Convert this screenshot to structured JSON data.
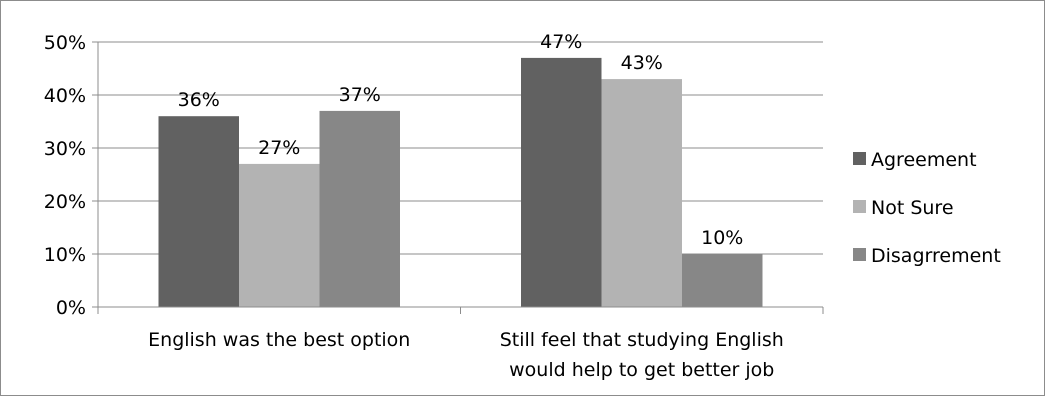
{
  "chart_data": {
    "type": "bar",
    "title": "",
    "xlabel": "",
    "ylabel": "",
    "categories": [
      [
        "English was the best option"
      ],
      [
        "Still feel that studying English",
        "would help to get better job"
      ]
    ],
    "series": [
      {
        "name": "Agreement",
        "values": [
          36,
          47
        ],
        "labels": [
          "36%",
          "47%"
        ],
        "color": "#616161"
      },
      {
        "name": "Not Sure",
        "values": [
          27,
          43
        ],
        "labels": [
          "27%",
          "43%"
        ],
        "color": "#b3b3b3"
      },
      {
        "name": "Disagrrement",
        "values": [
          37,
          10
        ],
        "labels": [
          "37%",
          "10%"
        ],
        "color": "#878787"
      }
    ],
    "ylim": [
      0,
      50
    ],
    "yticks": [
      {
        "value": 0,
        "label": "0%"
      },
      {
        "value": 10,
        "label": "10%"
      },
      {
        "value": 20,
        "label": "20%"
      },
      {
        "value": 30,
        "label": "30%"
      },
      {
        "value": 40,
        "label": "40%"
      },
      {
        "value": 50,
        "label": "50%"
      }
    ],
    "grid": true,
    "legend_position": "right"
  }
}
